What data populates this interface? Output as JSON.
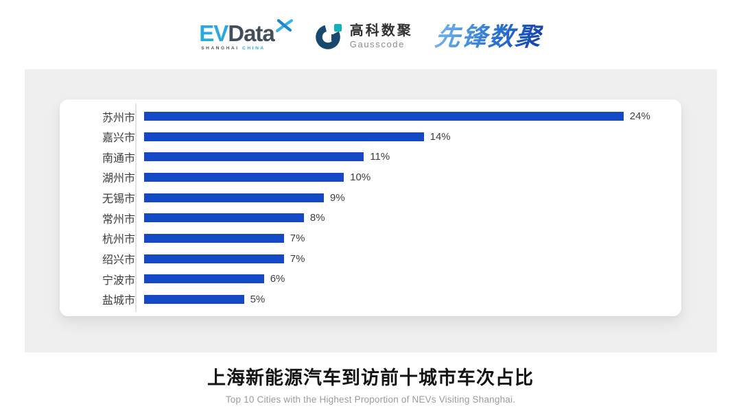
{
  "header": {
    "evdata": {
      "ev": "EV",
      "data": "Data",
      "sub_left": "SHANGHAI",
      "sub_right": "CHINA",
      "colors": {
        "ev_blue": "#2aa9e0",
        "data_slate": "#414e5b"
      }
    },
    "gausscode": {
      "cn": "高科数聚",
      "en": "Gausscode",
      "colors": {
        "navy": "#17496f",
        "teal": "#14b1bd"
      }
    },
    "pioneer": {
      "text": "先锋数聚",
      "color": "#2b6fd0"
    }
  },
  "chart_data": {
    "type": "bar",
    "orientation": "horizontal",
    "title": "上海新能源汽车到访前十城市车次占比",
    "subtitle": "Top 10 Cities with the Highest Proportion of  NEVs Visiting Shanghai.",
    "categories": [
      "苏州市",
      "嘉兴市",
      "南通市",
      "湖州市",
      "无锡市",
      "常州市",
      "杭州市",
      "绍兴市",
      "宁波市",
      "盐城市"
    ],
    "values": [
      24,
      14,
      11,
      10,
      9,
      8,
      7,
      7,
      6,
      5
    ],
    "value_suffix": "%",
    "xlim": [
      0,
      26
    ],
    "bar_color": "#1349c5",
    "axis_line_color": "#e3e3e3",
    "grid": false,
    "legend": false,
    "data_labels": "outside-end"
  }
}
